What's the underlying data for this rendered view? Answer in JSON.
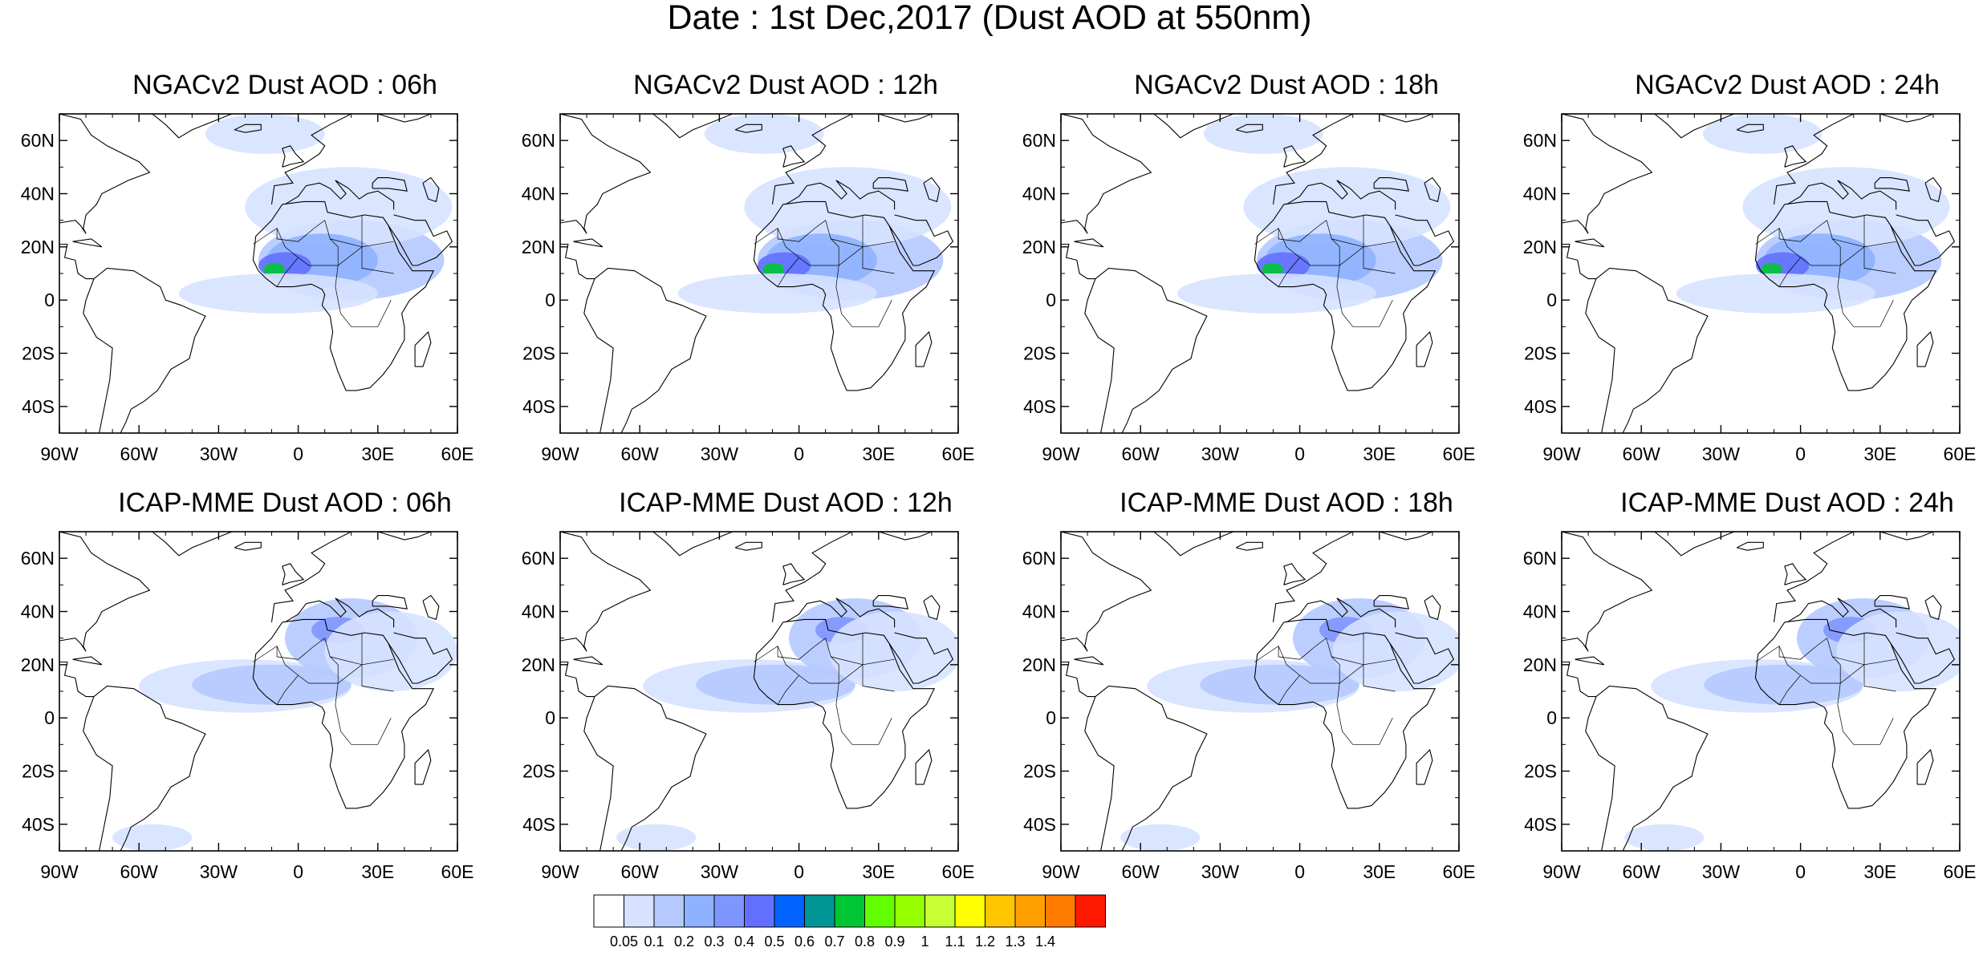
{
  "figure": {
    "title": "Date : 1st Dec,2017 (Dust AOD at 550nm)"
  },
  "map_extent": {
    "lon_range": [
      -90,
      60
    ],
    "lat_range": [
      -50,
      70
    ],
    "x_ticks": [
      {
        "value": -90,
        "label": "90W"
      },
      {
        "value": -60,
        "label": "60W"
      },
      {
        "value": -30,
        "label": "30W"
      },
      {
        "value": 0,
        "label": "0"
      },
      {
        "value": 30,
        "label": "30E"
      },
      {
        "value": 60,
        "label": "60E"
      }
    ],
    "y_ticks": [
      {
        "value": 60,
        "label": "60N"
      },
      {
        "value": 40,
        "label": "40N"
      },
      {
        "value": 20,
        "label": "20N"
      },
      {
        "value": 0,
        "label": "0"
      },
      {
        "value": -20,
        "label": "20S"
      },
      {
        "value": -40,
        "label": "40S"
      }
    ]
  },
  "panels": [
    {
      "title": "NGACv2 Dust AOD : 06h",
      "model": "NGAC",
      "hour": 6
    },
    {
      "title": "NGACv2 Dust AOD : 12h",
      "model": "NGAC",
      "hour": 12
    },
    {
      "title": "NGACv2 Dust AOD : 18h",
      "model": "NGAC",
      "hour": 18
    },
    {
      "title": "NGACv2 Dust AOD : 24h",
      "model": "NGAC",
      "hour": 24
    },
    {
      "title": "ICAP-MME Dust AOD : 06h",
      "model": "ICAP",
      "hour": 6
    },
    {
      "title": "ICAP-MME Dust AOD : 12h",
      "model": "ICAP",
      "hour": 12
    },
    {
      "title": "ICAP-MME Dust AOD : 18h",
      "model": "ICAP",
      "hour": 18
    },
    {
      "title": "ICAP-MME Dust AOD : 24h",
      "model": "ICAP",
      "hour": 24
    }
  ],
  "colorbar": {
    "boundaries": [
      "0.05",
      "0.1",
      "0.2",
      "0.3",
      "0.4",
      "0.5",
      "0.6",
      "0.7",
      "0.8",
      "0.9",
      "1",
      "1.1",
      "1.2",
      "1.3",
      "1.4"
    ],
    "colors": [
      "#ffffff",
      "#d6e2ff",
      "#b5c9ff",
      "#8eb2ff",
      "#7f96ff",
      "#6370ff",
      "#0063ff",
      "#009696",
      "#00c633",
      "#63ff00",
      "#96ff00",
      "#c6ff33",
      "#ffff00",
      "#ffc600",
      "#ffa000",
      "#ff7c00",
      "#ff1900"
    ]
  },
  "dust_plumes": {
    "NGAC": [
      {
        "lon": [
          -15,
          55
        ],
        "lat": [
          0,
          30
        ],
        "level": 2
      },
      {
        "lon": [
          -20,
          58
        ],
        "lat": [
          20,
          50
        ],
        "level": 1
      },
      {
        "lon": [
          -12,
          30
        ],
        "lat": [
          5,
          25
        ],
        "level": 3
      },
      {
        "lon": [
          -15,
          5
        ],
        "lat": [
          8,
          18
        ],
        "level": 5
      },
      {
        "lon": [
          -13,
          -5
        ],
        "lat": [
          9,
          14
        ],
        "level": 8
      },
      {
        "lon": [
          -45,
          30
        ],
        "lat": [
          -5,
          10
        ],
        "level": 1
      },
      {
        "lon": [
          -35,
          10
        ],
        "lat": [
          55,
          70
        ],
        "level": 1
      }
    ],
    "ICAP": [
      {
        "lon": [
          -60,
          20
        ],
        "lat": [
          2,
          22
        ],
        "level": 1
      },
      {
        "lon": [
          -40,
          20
        ],
        "lat": [
          5,
          20
        ],
        "level": 2
      },
      {
        "lon": [
          -5,
          45
        ],
        "lat": [
          15,
          45
        ],
        "level": 2
      },
      {
        "lon": [
          5,
          25
        ],
        "lat": [
          28,
          38
        ],
        "level": 4
      },
      {
        "lon": [
          10,
          60
        ],
        "lat": [
          10,
          40
        ],
        "level": 1
      },
      {
        "lon": [
          -70,
          -40
        ],
        "lat": [
          -50,
          -40
        ],
        "level": 1
      }
    ]
  }
}
